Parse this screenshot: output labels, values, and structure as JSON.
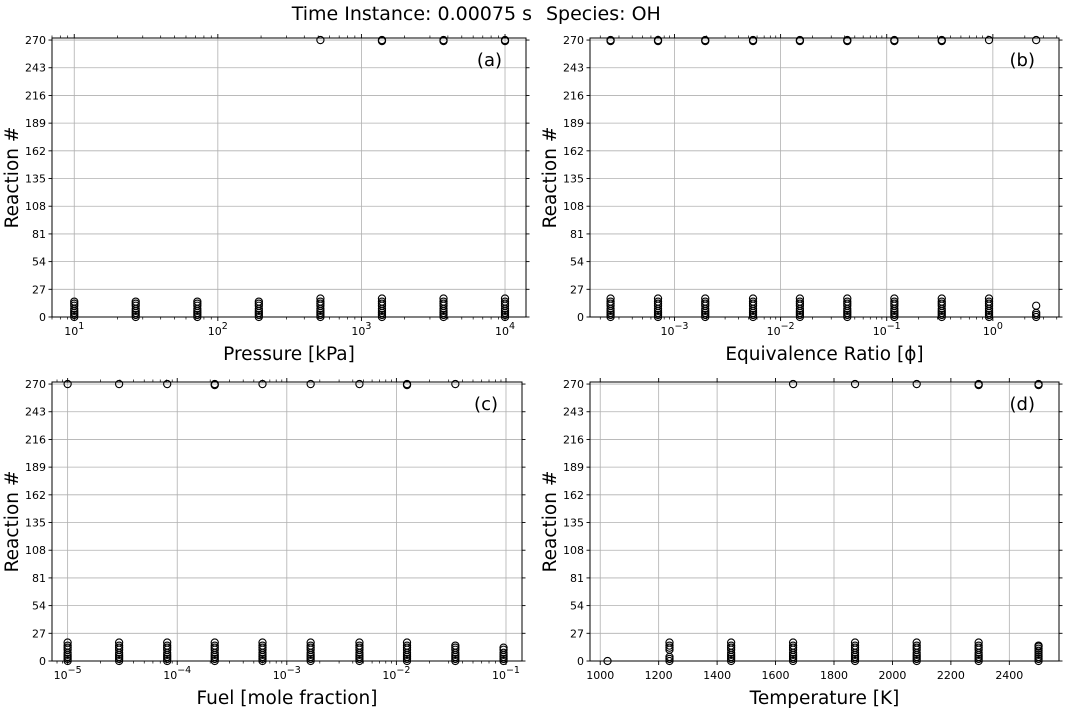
{
  "figure": {
    "title_left": "Time Instance: 0.00075 s",
    "title_right": "Species: OH"
  },
  "chart_data": [
    {
      "type": "scatter",
      "panel_label": "(a)",
      "xlabel": "Pressure [kPa]",
      "ylabel": "Reaction #",
      "xscale": "log",
      "xlim": [
        7,
        14000
      ],
      "ylim": [
        0,
        272
      ],
      "yticks": [
        0,
        27,
        54,
        81,
        108,
        135,
        162,
        189,
        216,
        243,
        270
      ],
      "xticks": [
        10,
        100,
        1000,
        10000
      ],
      "xtick_labels": [
        [
          "10",
          "1"
        ],
        [
          "10",
          "2"
        ],
        [
          "10",
          "3"
        ],
        [
          "10",
          "4"
        ]
      ],
      "grid": true,
      "marker": "open-circle",
      "points": [
        {
          "x": 10,
          "y": [
            0,
            2,
            4,
            6,
            8,
            11,
            13,
            15
          ]
        },
        {
          "x": 26.8,
          "y": [
            0,
            2,
            4,
            6,
            8,
            11,
            13,
            15
          ]
        },
        {
          "x": 72,
          "y": [
            0,
            2,
            4,
            6,
            8,
            11,
            13,
            15
          ]
        },
        {
          "x": 193,
          "y": [
            0,
            2,
            4,
            6,
            8,
            11,
            13,
            15
          ]
        },
        {
          "x": 518,
          "y": [
            0,
            2,
            4,
            6,
            8,
            11,
            13,
            15,
            18,
            270
          ]
        },
        {
          "x": 1390,
          "y": [
            0,
            2,
            4,
            6,
            8,
            11,
            13,
            15,
            18,
            269,
            270
          ]
        },
        {
          "x": 3730,
          "y": [
            0,
            2,
            4,
            6,
            8,
            11,
            13,
            15,
            18,
            269,
            270
          ]
        },
        {
          "x": 10000,
          "y": [
            0,
            2,
            4,
            6,
            8,
            11,
            13,
            15,
            18,
            269,
            270
          ]
        }
      ]
    },
    {
      "type": "scatter",
      "panel_label": "(b)",
      "xlabel": "Equivalence Ratio [ϕ]",
      "ylabel": "Reaction #",
      "xscale": "log",
      "xlim": [
        0.00016,
        4.2
      ],
      "ylim": [
        0,
        272
      ],
      "yticks": [
        0,
        27,
        54,
        81,
        108,
        135,
        162,
        189,
        216,
        243,
        270
      ],
      "xticks": [
        0.001,
        0.01,
        0.1,
        1
      ],
      "xtick_labels": [
        [
          "10",
          "−3"
        ],
        [
          "10",
          "−2"
        ],
        [
          "10",
          "−1"
        ],
        [
          "10",
          "0"
        ]
      ],
      "grid": true,
      "marker": "open-circle",
      "points": [
        {
          "x": 0.00025,
          "y": [
            0,
            2,
            4,
            6,
            8,
            11,
            13,
            15,
            18,
            269,
            270
          ]
        },
        {
          "x": 0.0007,
          "y": [
            0,
            2,
            4,
            6,
            8,
            11,
            13,
            15,
            18,
            269,
            270
          ]
        },
        {
          "x": 0.00195,
          "y": [
            0,
            2,
            4,
            6,
            8,
            11,
            13,
            15,
            18,
            269,
            270
          ]
        },
        {
          "x": 0.0055,
          "y": [
            0,
            2,
            4,
            6,
            8,
            11,
            13,
            15,
            18,
            269,
            270
          ]
        },
        {
          "x": 0.0152,
          "y": [
            0,
            2,
            4,
            6,
            8,
            11,
            13,
            15,
            18,
            269,
            270
          ]
        },
        {
          "x": 0.0425,
          "y": [
            0,
            2,
            4,
            6,
            8,
            11,
            13,
            15,
            18,
            269,
            270
          ]
        },
        {
          "x": 0.118,
          "y": [
            0,
            2,
            4,
            6,
            8,
            11,
            13,
            15,
            18,
            269,
            270
          ]
        },
        {
          "x": 0.33,
          "y": [
            0,
            2,
            4,
            6,
            8,
            11,
            13,
            15,
            18,
            269,
            270
          ]
        },
        {
          "x": 0.92,
          "y": [
            0,
            2,
            4,
            6,
            8,
            11,
            13,
            15,
            18,
            270
          ]
        },
        {
          "x": 2.56,
          "y": [
            0,
            2,
            4,
            11,
            270
          ]
        }
      ]
    },
    {
      "type": "scatter",
      "panel_label": "(c)",
      "xlabel": "Fuel [mole fraction]",
      "ylabel": "Reaction #",
      "xscale": "log",
      "xlim": [
        7.2e-06,
        0.14
      ],
      "ylim": [
        0,
        272
      ],
      "yticks": [
        0,
        27,
        54,
        81,
        108,
        135,
        162,
        189,
        216,
        243,
        270
      ],
      "xticks": [
        1e-05,
        0.0001,
        0.001,
        0.01,
        0.1
      ],
      "xtick_labels": [
        [
          "10",
          "−5"
        ],
        [
          "10",
          "−4"
        ],
        [
          "10",
          "−3"
        ],
        [
          "10",
          "−2"
        ],
        [
          "10",
          "−1"
        ]
      ],
      "grid": true,
      "marker": "open-circle",
      "points": [
        {
          "x": 1e-05,
          "y": [
            0,
            2,
            4,
            6,
            8,
            11,
            13,
            15,
            18,
            270
          ]
        },
        {
          "x": 2.95e-05,
          "y": [
            0,
            2,
            4,
            6,
            8,
            11,
            13,
            15,
            18,
            270
          ]
        },
        {
          "x": 8.1e-05,
          "y": [
            0,
            2,
            4,
            6,
            8,
            11,
            13,
            15,
            18,
            270
          ]
        },
        {
          "x": 0.00022,
          "y": [
            0,
            2,
            4,
            6,
            8,
            11,
            13,
            15,
            18,
            269,
            270
          ]
        },
        {
          "x": 0.0006,
          "y": [
            0,
            2,
            4,
            6,
            8,
            11,
            13,
            15,
            18,
            270
          ]
        },
        {
          "x": 0.00165,
          "y": [
            0,
            2,
            4,
            6,
            8,
            11,
            13,
            15,
            18,
            270
          ]
        },
        {
          "x": 0.0046,
          "y": [
            0,
            2,
            4,
            6,
            8,
            11,
            13,
            15,
            18,
            270
          ]
        },
        {
          "x": 0.0125,
          "y": [
            0,
            2,
            4,
            6,
            8,
            11,
            13,
            15,
            18,
            269,
            270
          ]
        },
        {
          "x": 0.0345,
          "y": [
            0,
            2,
            4,
            6,
            8,
            11,
            13,
            15,
            270
          ]
        },
        {
          "x": 0.095,
          "y": [
            0,
            2,
            4,
            6,
            8,
            11,
            13
          ]
        }
      ]
    },
    {
      "type": "scatter",
      "panel_label": "(d)",
      "xlabel": "Temperature [K]",
      "ylabel": "Reaction #",
      "xscale": "linear",
      "xlim": [
        965,
        2570
      ],
      "ylim": [
        0,
        272
      ],
      "yticks": [
        0,
        27,
        54,
        81,
        108,
        135,
        162,
        189,
        216,
        243,
        270
      ],
      "xticks": [
        1000,
        1200,
        1400,
        1600,
        1800,
        2000,
        2200,
        2400
      ],
      "xtick_labels": [
        [
          "1000",
          ""
        ],
        [
          "1200",
          ""
        ],
        [
          "1400",
          ""
        ],
        [
          "1600",
          ""
        ],
        [
          "1800",
          ""
        ],
        [
          "2000",
          ""
        ],
        [
          "2200",
          ""
        ],
        [
          "2400",
          ""
        ]
      ],
      "grid": true,
      "marker": "open-circle",
      "points": [
        {
          "x": 1025,
          "y": [
            0
          ]
        },
        {
          "x": 1237,
          "y": [
            0,
            2,
            4,
            11,
            13,
            15,
            18
          ]
        },
        {
          "x": 1448,
          "y": [
            0,
            2,
            4,
            6,
            8,
            11,
            13,
            15,
            18
          ]
        },
        {
          "x": 1660,
          "y": [
            0,
            2,
            4,
            6,
            8,
            11,
            13,
            15,
            18,
            270
          ]
        },
        {
          "x": 1872,
          "y": [
            0,
            2,
            4,
            6,
            8,
            11,
            13,
            15,
            18,
            270
          ]
        },
        {
          "x": 2083,
          "y": [
            0,
            2,
            4,
            6,
            8,
            11,
            13,
            15,
            18,
            270
          ]
        },
        {
          "x": 2295,
          "y": [
            0,
            2,
            4,
            6,
            8,
            11,
            13,
            15,
            18,
            269,
            270
          ]
        },
        {
          "x": 2500,
          "y": [
            0,
            2,
            4,
            6,
            8,
            10,
            12,
            14,
            15,
            269,
            270
          ]
        }
      ]
    }
  ]
}
